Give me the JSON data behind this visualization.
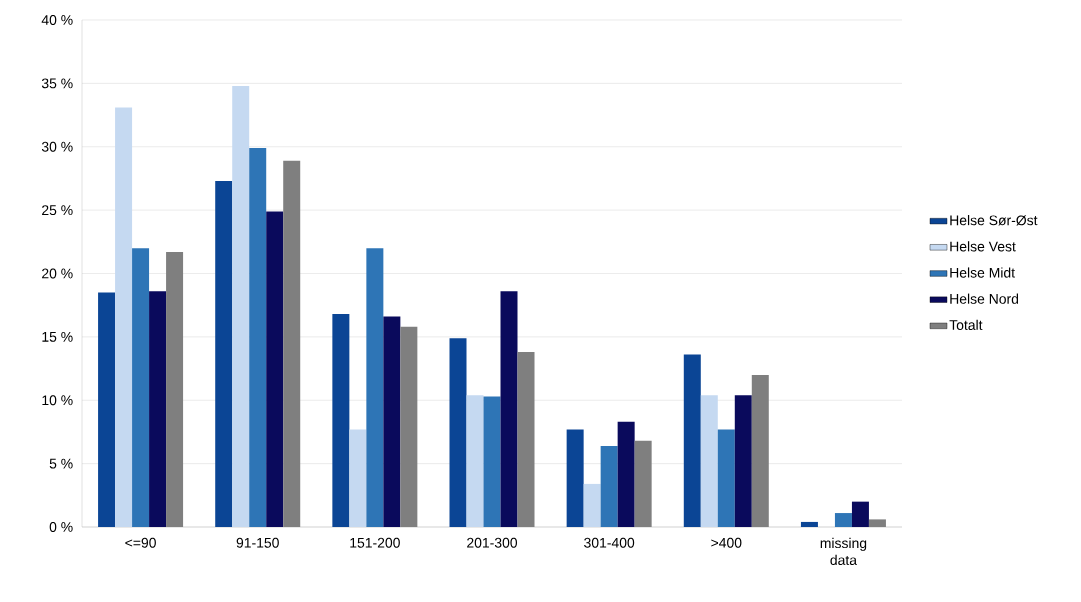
{
  "chart_data": {
    "type": "bar",
    "categories": [
      "<=90",
      "91-150",
      "151-200",
      "201-300",
      "301-400",
      ">400",
      "missing data"
    ],
    "series": [
      {
        "name": "Helse Sør-Øst",
        "color": "#0b4595",
        "values": [
          18.5,
          27.3,
          16.8,
          14.9,
          7.7,
          13.6,
          0.4
        ]
      },
      {
        "name": "Helse Vest",
        "color": "#c5d9f1",
        "values": [
          33.1,
          34.8,
          7.7,
          10.4,
          3.4,
          10.4,
          0
        ]
      },
      {
        "name": "Helse Midt",
        "color": "#2e75b6",
        "values": [
          22.0,
          29.9,
          22.0,
          10.3,
          6.4,
          7.7,
          1.1
        ]
      },
      {
        "name": "Helse Nord",
        "color": "#0a0a5c",
        "values": [
          18.6,
          24.9,
          16.6,
          18.6,
          8.3,
          10.4,
          2.0
        ]
      },
      {
        "name": "Totalt",
        "color": "#7f7f7f",
        "values": [
          21.7,
          28.9,
          15.8,
          13.8,
          6.8,
          12.0,
          0.6
        ]
      }
    ],
    "ylim": [
      0,
      40
    ],
    "yticks": [
      {
        "value": 0,
        "label": "0 %"
      },
      {
        "value": 5,
        "label": "5 %"
      },
      {
        "value": 10,
        "label": "10 %"
      },
      {
        "value": 15,
        "label": "15 %"
      },
      {
        "value": 20,
        "label": "20 %"
      },
      {
        "value": 25,
        "label": "25 %"
      },
      {
        "value": 30,
        "label": "30 %"
      },
      {
        "value": 35,
        "label": "35 %"
      },
      {
        "value": 40,
        "label": "40 %"
      }
    ],
    "grid": "y",
    "legend": "right"
  }
}
